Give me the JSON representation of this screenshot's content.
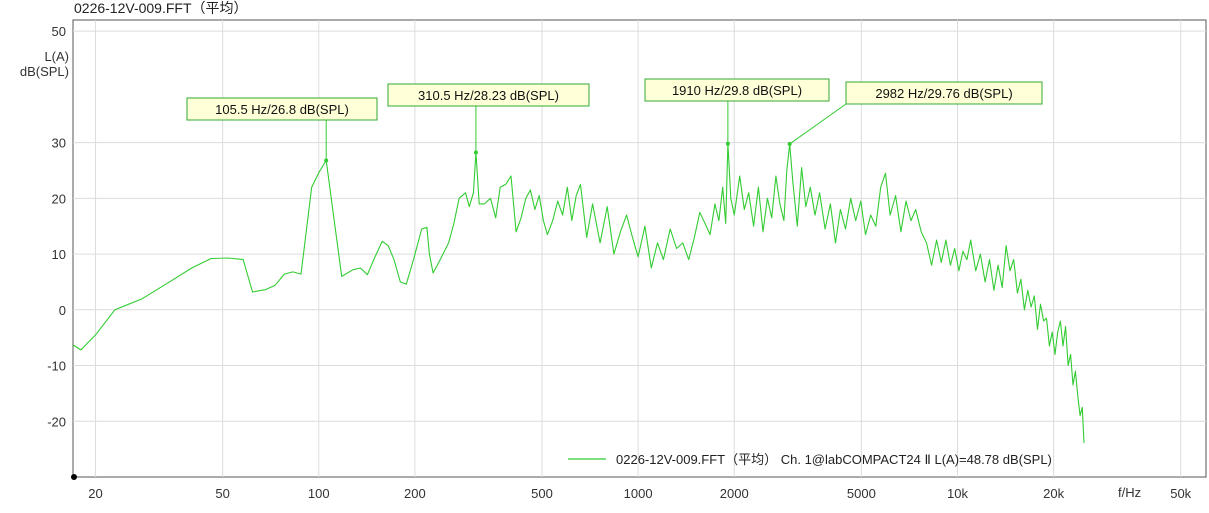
{
  "window": {
    "title": "0226-12V-009.FFT（平均）"
  },
  "chart_data": {
    "type": "line",
    "xscale": "log",
    "xlim": [
      17,
      60000
    ],
    "ylim": [
      -30,
      52
    ],
    "ylabel_line1": "L(A)",
    "ylabel_line2": "dB(SPL)",
    "xlabel": "f/Hz",
    "grid": true,
    "legend_position": "bottom-right",
    "line_color": "#33cc33",
    "x_ticks": [
      {
        "v": 20,
        "label": "20"
      },
      {
        "v": 50,
        "label": "50"
      },
      {
        "v": 100,
        "label": "100"
      },
      {
        "v": 200,
        "label": "200"
      },
      {
        "v": 500,
        "label": "500"
      },
      {
        "v": 1000,
        "label": "1000"
      },
      {
        "v": 2000,
        "label": "2000"
      },
      {
        "v": 5000,
        "label": "5000"
      },
      {
        "v": 10000,
        "label": "10k"
      },
      {
        "v": 20000,
        "label": "20k"
      },
      {
        "v": 50000,
        "label": "50k"
      }
    ],
    "y_ticks": [
      {
        "v": 50,
        "label": "50"
      },
      {
        "v": 30,
        "label": "30"
      },
      {
        "v": 20,
        "label": "20"
      },
      {
        "v": 10,
        "label": "10"
      },
      {
        "v": 0,
        "label": "0"
      },
      {
        "v": -10,
        "label": "-10"
      },
      {
        "v": -20,
        "label": "-20"
      }
    ],
    "series": [
      {
        "label": "0226-12V-009.FFT（平均） Ch. 1@labCOMPACT24 Ⅱ L(A)=48.78 dB(SPL)",
        "points": [
          [
            17,
            -6.3
          ],
          [
            18,
            -7.2
          ],
          [
            20,
            -4.5
          ],
          [
            23,
            0
          ],
          [
            28,
            2
          ],
          [
            33,
            4.5
          ],
          [
            40,
            7.5
          ],
          [
            46,
            9.2
          ],
          [
            52,
            9.3
          ],
          [
            58,
            9
          ],
          [
            62,
            3.2
          ],
          [
            68,
            3.6
          ],
          [
            73,
            4.4
          ],
          [
            78,
            6.4
          ],
          [
            83,
            6.8
          ],
          [
            88,
            6.4
          ],
          [
            95,
            22
          ],
          [
            100,
            24.6
          ],
          [
            105.5,
            26.8
          ],
          [
            110,
            19
          ],
          [
            118,
            6
          ],
          [
            128,
            7.2
          ],
          [
            135,
            7.5
          ],
          [
            142,
            6.3
          ],
          [
            150,
            9.5
          ],
          [
            158,
            12.3
          ],
          [
            165,
            11.5
          ],
          [
            172,
            9
          ],
          [
            180,
            5
          ],
          [
            188,
            4.6
          ],
          [
            198,
            9
          ],
          [
            210,
            14.5
          ],
          [
            218,
            14.8
          ],
          [
            222,
            10
          ],
          [
            228,
            6.6
          ],
          [
            240,
            9
          ],
          [
            255,
            12
          ],
          [
            265,
            15.5
          ],
          [
            275,
            20
          ],
          [
            288,
            21
          ],
          [
            296,
            18.5
          ],
          [
            305,
            21
          ],
          [
            310.5,
            28.23
          ],
          [
            318,
            19
          ],
          [
            330,
            19
          ],
          [
            345,
            20
          ],
          [
            358,
            16.5
          ],
          [
            370,
            22
          ],
          [
            385,
            22.5
          ],
          [
            400,
            24
          ],
          [
            415,
            14
          ],
          [
            430,
            16.5
          ],
          [
            445,
            20
          ],
          [
            460,
            21.5
          ],
          [
            475,
            18
          ],
          [
            490,
            20.5
          ],
          [
            505,
            16
          ],
          [
            520,
            13.5
          ],
          [
            540,
            16
          ],
          [
            560,
            19.5
          ],
          [
            580,
            17
          ],
          [
            600,
            22
          ],
          [
            620,
            16
          ],
          [
            640,
            20.5
          ],
          [
            660,
            22.5
          ],
          [
            690,
            13
          ],
          [
            720,
            19
          ],
          [
            760,
            12
          ],
          [
            800,
            18.5
          ],
          [
            840,
            10
          ],
          [
            880,
            14
          ],
          [
            920,
            17
          ],
          [
            960,
            13
          ],
          [
            1000,
            9.5
          ],
          [
            1050,
            15
          ],
          [
            1100,
            7.5
          ],
          [
            1150,
            12
          ],
          [
            1200,
            9
          ],
          [
            1260,
            14.5
          ],
          [
            1320,
            11
          ],
          [
            1380,
            12
          ],
          [
            1440,
            9
          ],
          [
            1500,
            13
          ],
          [
            1560,
            17.5
          ],
          [
            1620,
            15.5
          ],
          [
            1680,
            13.5
          ],
          [
            1740,
            19
          ],
          [
            1790,
            16
          ],
          [
            1840,
            22
          ],
          [
            1880,
            15.5
          ],
          [
            1910,
            29.8
          ],
          [
            1950,
            20
          ],
          [
            2000,
            17
          ],
          [
            2080,
            24
          ],
          [
            2150,
            18
          ],
          [
            2220,
            21
          ],
          [
            2300,
            15
          ],
          [
            2380,
            22
          ],
          [
            2460,
            14
          ],
          [
            2540,
            20
          ],
          [
            2620,
            16.5
          ],
          [
            2700,
            24
          ],
          [
            2780,
            19
          ],
          [
            2860,
            16
          ],
          [
            2920,
            25
          ],
          [
            2982,
            29.76
          ],
          [
            3050,
            23
          ],
          [
            3150,
            15
          ],
          [
            3250,
            25.5
          ],
          [
            3350,
            18.5
          ],
          [
            3460,
            22
          ],
          [
            3580,
            17
          ],
          [
            3700,
            21
          ],
          [
            3850,
            14.5
          ],
          [
            4000,
            19
          ],
          [
            4150,
            12
          ],
          [
            4300,
            18
          ],
          [
            4460,
            14.5
          ],
          [
            4630,
            20
          ],
          [
            4800,
            16
          ],
          [
            4980,
            19.5
          ],
          [
            5150,
            13.5
          ],
          [
            5350,
            17
          ],
          [
            5550,
            15
          ],
          [
            5750,
            22
          ],
          [
            5950,
            24.5
          ],
          [
            6150,
            17
          ],
          [
            6400,
            20.5
          ],
          [
            6650,
            14
          ],
          [
            6900,
            19.5
          ],
          [
            7150,
            16
          ],
          [
            7400,
            18
          ],
          [
            7700,
            14
          ],
          [
            8000,
            12
          ],
          [
            8300,
            8
          ],
          [
            8600,
            12.5
          ],
          [
            8900,
            8.5
          ],
          [
            9200,
            12.5
          ],
          [
            9500,
            8
          ],
          [
            9800,
            11
          ],
          [
            10100,
            7
          ],
          [
            10400,
            10.5
          ],
          [
            10700,
            9
          ],
          [
            11000,
            12.5
          ],
          [
            11400,
            7
          ],
          [
            11800,
            10
          ],
          [
            12200,
            5
          ],
          [
            12600,
            9
          ],
          [
            13000,
            3.5
          ],
          [
            13400,
            8
          ],
          [
            13800,
            4
          ],
          [
            14200,
            11.5
          ],
          [
            14600,
            7
          ],
          [
            15000,
            9
          ],
          [
            15400,
            3
          ],
          [
            15800,
            5.5
          ],
          [
            16200,
            0
          ],
          [
            16600,
            3.5
          ],
          [
            17000,
            0.5
          ],
          [
            17400,
            2.5
          ],
          [
            17800,
            -3.5
          ],
          [
            18200,
            1
          ],
          [
            18600,
            -2
          ],
          [
            19000,
            -1.5
          ],
          [
            19400,
            -6.5
          ],
          [
            19800,
            -4
          ],
          [
            20200,
            -8
          ],
          [
            20600,
            -4
          ],
          [
            21000,
            -2
          ],
          [
            21400,
            -6.5
          ],
          [
            21800,
            -3
          ],
          [
            22200,
            -10
          ],
          [
            22600,
            -8
          ],
          [
            23000,
            -13.5
          ],
          [
            23400,
            -11
          ],
          [
            23800,
            -15.5
          ],
          [
            24200,
            -19
          ],
          [
            24600,
            -17.5
          ],
          [
            24900,
            -23.9
          ]
        ]
      }
    ],
    "annotations": [
      {
        "x": 105.5,
        "y": 26.8,
        "label": "105.5 Hz/26.8 dB(SPL)"
      },
      {
        "x": 310.5,
        "y": 28.23,
        "label": "310.5 Hz/28.23 dB(SPL)"
      },
      {
        "x": 1910,
        "y": 29.8,
        "label": "1910 Hz/29.8 dB(SPL)"
      },
      {
        "x": 2982,
        "y": 29.76,
        "label": "2982 Hz/29.76 dB(SPL)"
      }
    ]
  }
}
